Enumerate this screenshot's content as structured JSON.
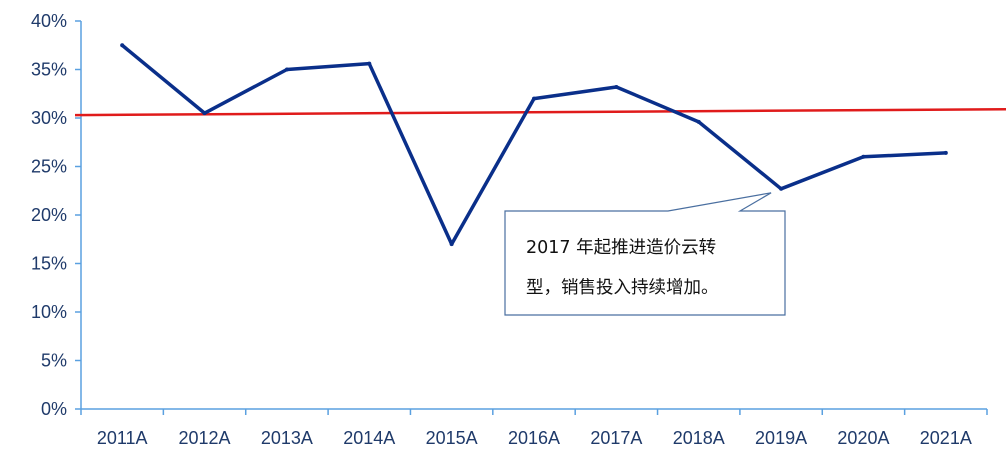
{
  "chart_data": {
    "type": "line",
    "categories": [
      "2011A",
      "2012A",
      "2013A",
      "2014A",
      "2015A",
      "2016A",
      "2017A",
      "2018A",
      "2019A",
      "2020A",
      "2021A"
    ],
    "series": [
      {
        "values": [
          37.5,
          30.5,
          35.0,
          35.6,
          17.0,
          32.0,
          33.2,
          29.6,
          22.7,
          26.0,
          26.4
        ],
        "color": "#0a2f8a"
      }
    ],
    "reference_line": {
      "start": 30.3,
      "end": 30.9,
      "color": "#e01b1b"
    },
    "ylim": [
      0,
      40
    ],
    "yticks": [
      0,
      5,
      10,
      15,
      20,
      25,
      30,
      35,
      40
    ],
    "ytick_labels": [
      "0%",
      "5%",
      "10%",
      "15%",
      "20%",
      "25%",
      "30%",
      "35%",
      "40%"
    ],
    "grid": false,
    "annotation": {
      "lines": [
        "2017 年起推进造价云转",
        "型，销售投入持续增加。"
      ],
      "target_category": "2019A"
    }
  }
}
